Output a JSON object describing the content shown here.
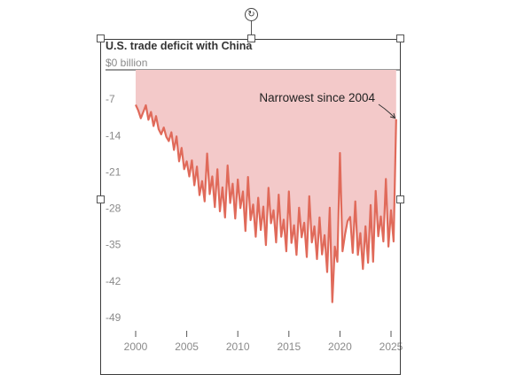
{
  "chart_data": {
    "type": "area",
    "title": "U.S. trade deficit with China",
    "xlabel": "",
    "ylabel": "",
    "y_ticks": [
      "$0 billion",
      "-7",
      "-14",
      "-21",
      "-28",
      "-35",
      "-42",
      "-49"
    ],
    "y_tick_values": [
      0,
      -7,
      -14,
      -21,
      -28,
      -35,
      -42,
      -49
    ],
    "x_ticks": [
      "2000",
      "2005",
      "2010",
      "2015",
      "2020",
      "2025"
    ],
    "x_tick_values": [
      2000,
      2005,
      2010,
      2015,
      2020,
      2025
    ],
    "xlim": [
      1998.3,
      2026.7
    ],
    "ylim": [
      -49,
      0
    ],
    "grid": false,
    "annotation": {
      "text": "Narrowest since 2004",
      "x": 2025.4,
      "y": -8.7
    },
    "series": [
      {
        "x": [
          2000.0,
          2000.25,
          2000.5,
          2000.75,
          2001.0,
          2001.25,
          2001.5,
          2001.75,
          2002.0,
          2002.25,
          2002.5,
          2002.75,
          2003.0,
          2003.25,
          2003.5,
          2003.75,
          2004.0,
          2004.25,
          2004.5,
          2004.75,
          2005.0,
          2005.25,
          2005.5,
          2005.75,
          2006.0,
          2006.25,
          2006.5,
          2006.75,
          2007.0,
          2007.25,
          2007.5,
          2007.75,
          2008.0,
          2008.25,
          2008.5,
          2008.75,
          2009.0,
          2009.25,
          2009.5,
          2009.75,
          2010.0,
          2010.25,
          2010.5,
          2010.75,
          2011.0,
          2011.25,
          2011.5,
          2011.75,
          2012.0,
          2012.25,
          2012.5,
          2012.75,
          2013.0,
          2013.25,
          2013.5,
          2013.75,
          2014.0,
          2014.25,
          2014.5,
          2014.75,
          2015.0,
          2015.25,
          2015.5,
          2015.75,
          2016.0,
          2016.25,
          2016.5,
          2016.75,
          2017.0,
          2017.25,
          2017.5,
          2017.75,
          2018.0,
          2018.25,
          2018.5,
          2018.75,
          2019.0,
          2019.25,
          2019.5,
          2019.75,
          2020.0,
          2020.25,
          2020.5,
          2020.75,
          2021.0,
          2021.25,
          2021.5,
          2021.75,
          2022.0,
          2022.25,
          2022.5,
          2022.75,
          2023.0,
          2023.25,
          2023.5,
          2023.75,
          2024.0,
          2024.25,
          2024.5,
          2024.75,
          2025.0,
          2025.25,
          2025.5
        ],
        "values": [
          -6.7,
          -7.8,
          -9.3,
          -8.1,
          -6.8,
          -9.6,
          -8.1,
          -10.8,
          -8.9,
          -11.4,
          -12.4,
          -11.1,
          -12.9,
          -13.7,
          -12.0,
          -15.4,
          -12.8,
          -17.6,
          -15.0,
          -19.1,
          -17.6,
          -20.5,
          -17.4,
          -22.2,
          -18.6,
          -24.1,
          -21.4,
          -25.3,
          -16.1,
          -23.9,
          -20.5,
          -26.4,
          -19.1,
          -27.2,
          -22.6,
          -28.4,
          -18.4,
          -25.6,
          -21.9,
          -28.6,
          -21.1,
          -26.6,
          -23.4,
          -31.0,
          -20.6,
          -28.9,
          -25.9,
          -32.1,
          -24.6,
          -30.8,
          -26.3,
          -33.7,
          -22.7,
          -29.5,
          -27.0,
          -33.2,
          -24.0,
          -32.1,
          -28.8,
          -34.9,
          -23.4,
          -33.3,
          -29.9,
          -35.6,
          -26.5,
          -32.2,
          -29.4,
          -36.0,
          -24.3,
          -33.2,
          -30.1,
          -36.4,
          -28.4,
          -35.5,
          -31.8,
          -38.9,
          -26.5,
          -44.7,
          -34.0,
          -36.9,
          -16.0,
          -34.9,
          -31.6,
          -29.1,
          -28.3,
          -35.2,
          -25.3,
          -35.6,
          -31.4,
          -38.3,
          -30.1,
          -37.1,
          -26.0,
          -36.9,
          -23.3,
          -32.0,
          -28.2,
          -33.0,
          -21.0,
          -34.0,
          -27.0,
          -33.0,
          -9.5
        ]
      }
    ]
  }
}
